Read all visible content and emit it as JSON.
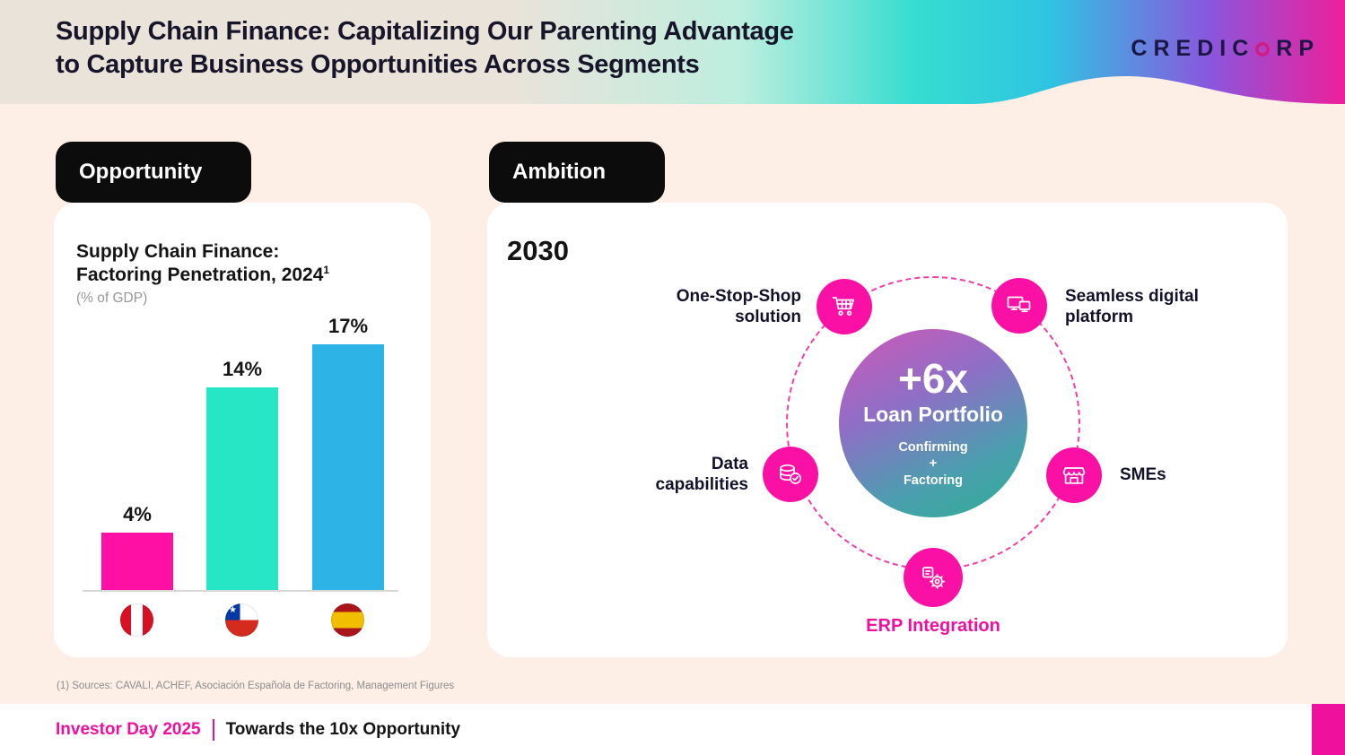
{
  "header": {
    "title_line1": "Supply Chain Finance: Capitalizing Our Parenting Advantage",
    "title_line2": "to Capture Business Opportunities Across Segments",
    "logo_left": "CREDIC",
    "logo_right": "RP",
    "logo_name": "CREDICORP"
  },
  "opportunity": {
    "tab_label": "Opportunity",
    "chart_title_line1": "Supply Chain Finance:",
    "chart_title_line2": "Factoring Penetration, 2024",
    "chart_title_sup": "1",
    "chart_subtitle": "(% of GDP)"
  },
  "chart_data": {
    "type": "bar",
    "title": "Supply Chain Finance: Factoring Penetration, 2024",
    "subtitle": "(% of GDP)",
    "categories": [
      "Peru",
      "Chile",
      "Spain"
    ],
    "values": [
      4,
      14,
      17
    ],
    "value_labels": [
      "4%",
      "14%",
      "17%"
    ],
    "bar_colors": [
      "#ff10a5",
      "#27e6c6",
      "#2eb3e6"
    ],
    "ylim": [
      0,
      18
    ],
    "unit": "% of GDP",
    "legend": "flags of Peru, Chile and Spain shown under bars"
  },
  "ambition": {
    "tab_label": "Ambition",
    "year": "2030",
    "center": {
      "multiplier": "+6x",
      "title": "Loan Portfolio",
      "sub_line1": "Confirming",
      "sub_line2": "+",
      "sub_line3": "Factoring"
    },
    "satellites": [
      {
        "id": "one-stop-shop",
        "label": "One-Stop-Shop solution",
        "icon": "cart-icon"
      },
      {
        "id": "digital-platform",
        "label": "Seamless digital platform",
        "icon": "monitor-icon"
      },
      {
        "id": "data-capabilities",
        "label": "Data capabilities",
        "icon": "coins-icon"
      },
      {
        "id": "smes",
        "label": "SMEs",
        "icon": "store-icon"
      },
      {
        "id": "erp-integration",
        "label": "ERP Integration",
        "icon": "gear-icon"
      }
    ]
  },
  "footnote": "(1) Sources: CAVALI, ACHEF, Asociación Española de Factoring, Management Figures",
  "footer": {
    "event": "Investor Day 2025",
    "tagline": "Towards the 10x Opportunity"
  },
  "colors": {
    "accent_pink": "#f0109e",
    "satellite_pink": "#fa10a4",
    "tab_black": "#0c0c0c",
    "background": "#fdeee6",
    "header_teal": "#35ddd0",
    "header_magenta": "#ee1f9b",
    "dashed_ring_pink": "#f23fa8"
  }
}
